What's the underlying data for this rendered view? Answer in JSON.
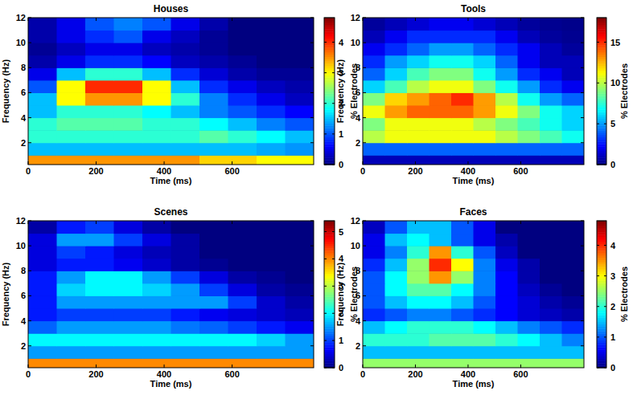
{
  "chart_data": [
    {
      "type": "heatmap",
      "title": "Houses",
      "x_label": "Time (ms)",
      "y_label": "Frequency (Hz)",
      "colorbar_label": "% Electrodes",
      "xlim": [
        0,
        840
      ],
      "ylim": [
        0.25,
        12
      ],
      "xticks": [
        0,
        200,
        400,
        600
      ],
      "yticks": [
        2,
        4,
        6,
        8,
        10,
        12
      ],
      "x_edges": [
        0,
        84,
        168,
        252,
        336,
        420,
        504,
        588,
        672,
        756,
        840
      ],
      "y_edges": [
        0.25,
        1,
        2,
        3,
        4,
        5,
        6,
        7,
        8,
        9,
        10,
        11,
        12
      ],
      "cells": [
        [
          3.5,
          3.5,
          3.5,
          3.5,
          3.5,
          3.5,
          3.2,
          3.2,
          3.0,
          3.0
        ],
        [
          1.5,
          1.5,
          1.5,
          1.5,
          1.5,
          1.5,
          1.5,
          1.5,
          1.4,
          1.3
        ],
        [
          2.0,
          2.0,
          2.0,
          2.0,
          2.0,
          2.0,
          2.2,
          2.0,
          1.8,
          1.5
        ],
        [
          2.0,
          2.2,
          2.2,
          2.2,
          2.0,
          2.0,
          1.8,
          1.5,
          1.2,
          1.0
        ],
        [
          1.5,
          2.0,
          2.0,
          2.0,
          1.8,
          1.5,
          1.2,
          1.0,
          0.8,
          0.6
        ],
        [
          1.5,
          3.0,
          3.5,
          3.5,
          3.0,
          2.0,
          1.2,
          0.8,
          0.5,
          0.3
        ],
        [
          1.0,
          3.0,
          4.0,
          4.0,
          3.0,
          1.5,
          0.8,
          0.5,
          0.3,
          0.2
        ],
        [
          0.5,
          1.5,
          2.0,
          2.0,
          1.5,
          0.8,
          0.4,
          0.2,
          0.1,
          0.1
        ],
        [
          0.2,
          0.5,
          0.8,
          0.8,
          0.6,
          0.3,
          0.2,
          0.1,
          0,
          0
        ],
        [
          0.1,
          0.3,
          0.5,
          0.5,
          0.3,
          0.2,
          0.1,
          0,
          0,
          0
        ],
        [
          0.2,
          0.5,
          0.8,
          1.0,
          0.5,
          0.3,
          0.1,
          0,
          0,
          0
        ],
        [
          0.2,
          0.5,
          1.0,
          1.2,
          1.0,
          0.5,
          0.2,
          0,
          0,
          0
        ]
      ],
      "colorbar_range": [
        0,
        4.8
      ],
      "colorbar_ticks": [
        0,
        1,
        2,
        3,
        4
      ]
    },
    {
      "type": "heatmap",
      "title": "Tools",
      "x_label": "Time (ms)",
      "y_label": "Frequency (Hz)",
      "colorbar_label": "% Electrodes",
      "xlim": [
        0,
        840
      ],
      "ylim": [
        0.25,
        12
      ],
      "xticks": [
        0,
        200,
        400,
        600
      ],
      "yticks": [
        2,
        4,
        6,
        8,
        10,
        12
      ],
      "x_edges": [
        0,
        84,
        168,
        252,
        336,
        420,
        504,
        588,
        672,
        756,
        840
      ],
      "y_edges": [
        0.25,
        1,
        2,
        3,
        4,
        5,
        6,
        7,
        8,
        9,
        10,
        11,
        12
      ],
      "cells": [
        [
          1,
          1,
          1,
          1,
          1,
          1,
          1,
          1,
          1,
          1
        ],
        [
          4,
          4,
          4,
          4,
          4,
          4,
          4,
          4,
          4,
          4
        ],
        [
          10,
          11,
          11,
          11,
          11,
          11,
          10,
          9,
          8,
          7
        ],
        [
          9,
          11,
          11,
          11,
          11,
          10,
          9,
          8,
          7,
          6
        ],
        [
          11,
          13,
          14,
          14,
          14,
          13,
          11,
          9,
          7,
          6
        ],
        [
          9,
          12,
          13,
          14,
          15,
          13,
          10,
          7,
          5,
          4
        ],
        [
          6,
          8,
          10,
          11,
          11,
          9,
          7,
          5,
          3,
          2
        ],
        [
          4,
          6,
          8,
          9,
          9,
          7,
          5,
          3,
          2,
          1
        ],
        [
          3,
          5,
          6,
          7,
          7,
          6,
          4,
          2,
          1,
          1
        ],
        [
          2,
          3,
          4,
          5,
          5,
          4,
          3,
          2,
          1,
          0.5
        ],
        [
          1,
          2,
          3,
          3,
          3,
          3,
          2,
          1,
          0.5,
          0.3
        ],
        [
          0.5,
          1,
          1.5,
          2,
          2,
          1.5,
          1,
          0.5,
          0.3,
          0.2
        ]
      ],
      "colorbar_range": [
        0,
        18
      ],
      "colorbar_ticks": [
        0,
        5,
        10,
        15
      ]
    },
    {
      "type": "heatmap",
      "title": "Scenes",
      "x_label": "Time (ms)",
      "y_label": "Frequency (Hz)",
      "colorbar_label": "% Electrodes",
      "xlim": [
        0,
        840
      ],
      "ylim": [
        0.25,
        12
      ],
      "xticks": [
        0,
        200,
        400,
        600
      ],
      "yticks": [
        2,
        4,
        6,
        8,
        10,
        12
      ],
      "x_edges": [
        0,
        84,
        168,
        252,
        336,
        420,
        504,
        588,
        672,
        756,
        840
      ],
      "y_edges": [
        0.25,
        1,
        2,
        3,
        4,
        5,
        6,
        7,
        8,
        9,
        10,
        11,
        12
      ],
      "cells": [
        [
          4.0,
          4.0,
          4.0,
          4.0,
          4.0,
          4.0,
          4.0,
          4.0,
          4.0,
          4.0
        ],
        [
          1.5,
          1.5,
          1.5,
          1.5,
          1.5,
          1.5,
          1.5,
          1.5,
          1.5,
          1.5
        ],
        [
          2.0,
          2.0,
          2.0,
          2.0,
          2.0,
          2.0,
          2.0,
          2.0,
          1.8,
          1.5
        ],
        [
          1.2,
          1.5,
          1.5,
          1.5,
          1.5,
          1.3,
          1.2,
          1.0,
          0.8,
          0.6
        ],
        [
          0.8,
          1.0,
          1.0,
          1.0,
          1.0,
          0.8,
          0.6,
          0.5,
          0.4,
          0.3
        ],
        [
          0.8,
          1.5,
          1.5,
          1.5,
          1.5,
          1.5,
          1.5,
          1.0,
          0.4,
          0.2
        ],
        [
          0.8,
          1.8,
          2.0,
          2.0,
          1.8,
          1.5,
          1.0,
          0.5,
          0.2,
          0.1
        ],
        [
          0.8,
          1.5,
          2.0,
          2.0,
          1.5,
          1.0,
          0.5,
          0.2,
          0.1,
          0
        ],
        [
          0.5,
          0.8,
          0.8,
          0.6,
          0.4,
          0.2,
          0.1,
          0,
          0,
          0
        ],
        [
          0.5,
          1.0,
          0.8,
          0.5,
          0.3,
          0.2,
          0,
          0,
          0,
          0
        ],
        [
          0.5,
          1.5,
          1.5,
          1.0,
          0.5,
          0.2,
          0,
          0,
          0,
          0
        ],
        [
          0.2,
          0.8,
          1.0,
          0.5,
          0.2,
          0,
          0,
          0,
          0,
          0
        ]
      ],
      "colorbar_range": [
        0,
        5.4
      ],
      "colorbar_ticks": [
        0,
        1,
        2,
        3,
        4,
        5
      ]
    },
    {
      "type": "heatmap",
      "title": "Faces",
      "x_label": "Time (ms)",
      "y_label": "Frequency (Hz)",
      "colorbar_label": "% Electrodes",
      "xlim": [
        0,
        840
      ],
      "ylim": [
        0.25,
        12
      ],
      "xticks": [
        0,
        200,
        400,
        600
      ],
      "yticks": [
        2,
        4,
        6,
        8,
        10,
        12
      ],
      "x_edges": [
        0,
        84,
        168,
        252,
        336,
        420,
        504,
        588,
        672,
        756,
        840
      ],
      "y_edges": [
        0.25,
        1,
        2,
        3,
        4,
        5,
        6,
        7,
        8,
        9,
        10,
        11,
        12
      ],
      "cells": [
        [
          2.5,
          2.5,
          2.5,
          2.5,
          2.5,
          2.5,
          2.5,
          2.5,
          2.5,
          2.5
        ],
        [
          1.5,
          1.5,
          1.5,
          1.5,
          1.5,
          1.5,
          1.5,
          1.5,
          1.5,
          1.5
        ],
        [
          2.0,
          2.0,
          2.0,
          2.2,
          2.2,
          2.2,
          2.0,
          1.8,
          1.5,
          1.2
        ],
        [
          1.5,
          1.8,
          2.0,
          2.0,
          2.0,
          1.8,
          1.5,
          1.2,
          1.0,
          0.8
        ],
        [
          0.8,
          1.0,
          1.2,
          1.2,
          1.0,
          0.8,
          0.6,
          0.4,
          0.3,
          0.2
        ],
        [
          1.0,
          1.5,
          1.8,
          1.8,
          1.5,
          1.0,
          0.6,
          0.4,
          0.2,
          0.1
        ],
        [
          1.0,
          1.8,
          2.2,
          2.2,
          1.8,
          1.2,
          0.6,
          0.3,
          0.1,
          0
        ],
        [
          1.0,
          1.8,
          2.5,
          3.5,
          2.5,
          1.2,
          0.6,
          0.2,
          0,
          0
        ],
        [
          0.8,
          1.5,
          2.5,
          4.0,
          3.0,
          1.2,
          0.5,
          0.2,
          0,
          0
        ],
        [
          0.5,
          1.2,
          2.0,
          3.5,
          2.0,
          1.0,
          0.3,
          0,
          0,
          0
        ],
        [
          0.5,
          1.5,
          1.8,
          1.5,
          1.0,
          0.5,
          0.2,
          0,
          0,
          0
        ],
        [
          0.3,
          1.0,
          1.5,
          1.5,
          1.0,
          0.5,
          0,
          0,
          0,
          0
        ]
      ],
      "colorbar_range": [
        0,
        4.8
      ],
      "colorbar_ticks": [
        0,
        1,
        2,
        3,
        4
      ]
    }
  ]
}
